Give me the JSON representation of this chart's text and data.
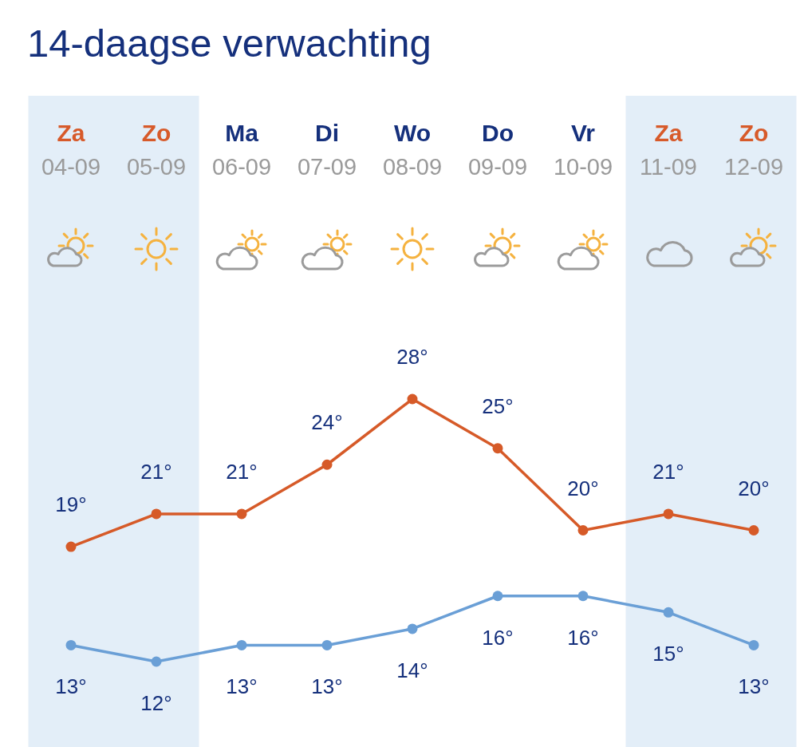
{
  "chart_data": {
    "type": "line",
    "title": "14-daagse verwachting",
    "categories": [
      "Za\n04-09",
      "Zo\n05-09",
      "Ma\n06-09",
      "Di\n07-09",
      "Wo\n08-09",
      "Do\n09-09",
      "Vr\n10-09",
      "Za\n11-09",
      "Zo\n12-09"
    ],
    "series": [
      {
        "color": "#d65a28",
        "values": [
          19,
          21,
          21,
          24,
          28,
          25,
          20,
          21,
          20
        ],
        "value_labels": [
          "19°",
          "21°",
          "21°",
          "24°",
          "28°",
          "25°",
          "20°",
          "21°",
          "20°"
        ]
      },
      {
        "color": "#6a9fd6",
        "values": [
          13,
          12,
          13,
          13,
          14,
          16,
          16,
          15,
          13
        ],
        "value_labels": [
          "13°",
          "12°",
          "13°",
          "13°",
          "14°",
          "16°",
          "16°",
          "15°",
          "13°"
        ]
      }
    ],
    "bands": [
      {
        "axis": "x",
        "from": "Za\n04-09",
        "to": "Zo\n05-09",
        "color": "#e3eef8"
      },
      {
        "axis": "x",
        "from": "Za\n11-09",
        "to": "Zo\n12-09",
        "color": "#e3eef8"
      }
    ],
    "marker": "circle",
    "line_style": "solid",
    "tick_labels": "x"
  }
}
